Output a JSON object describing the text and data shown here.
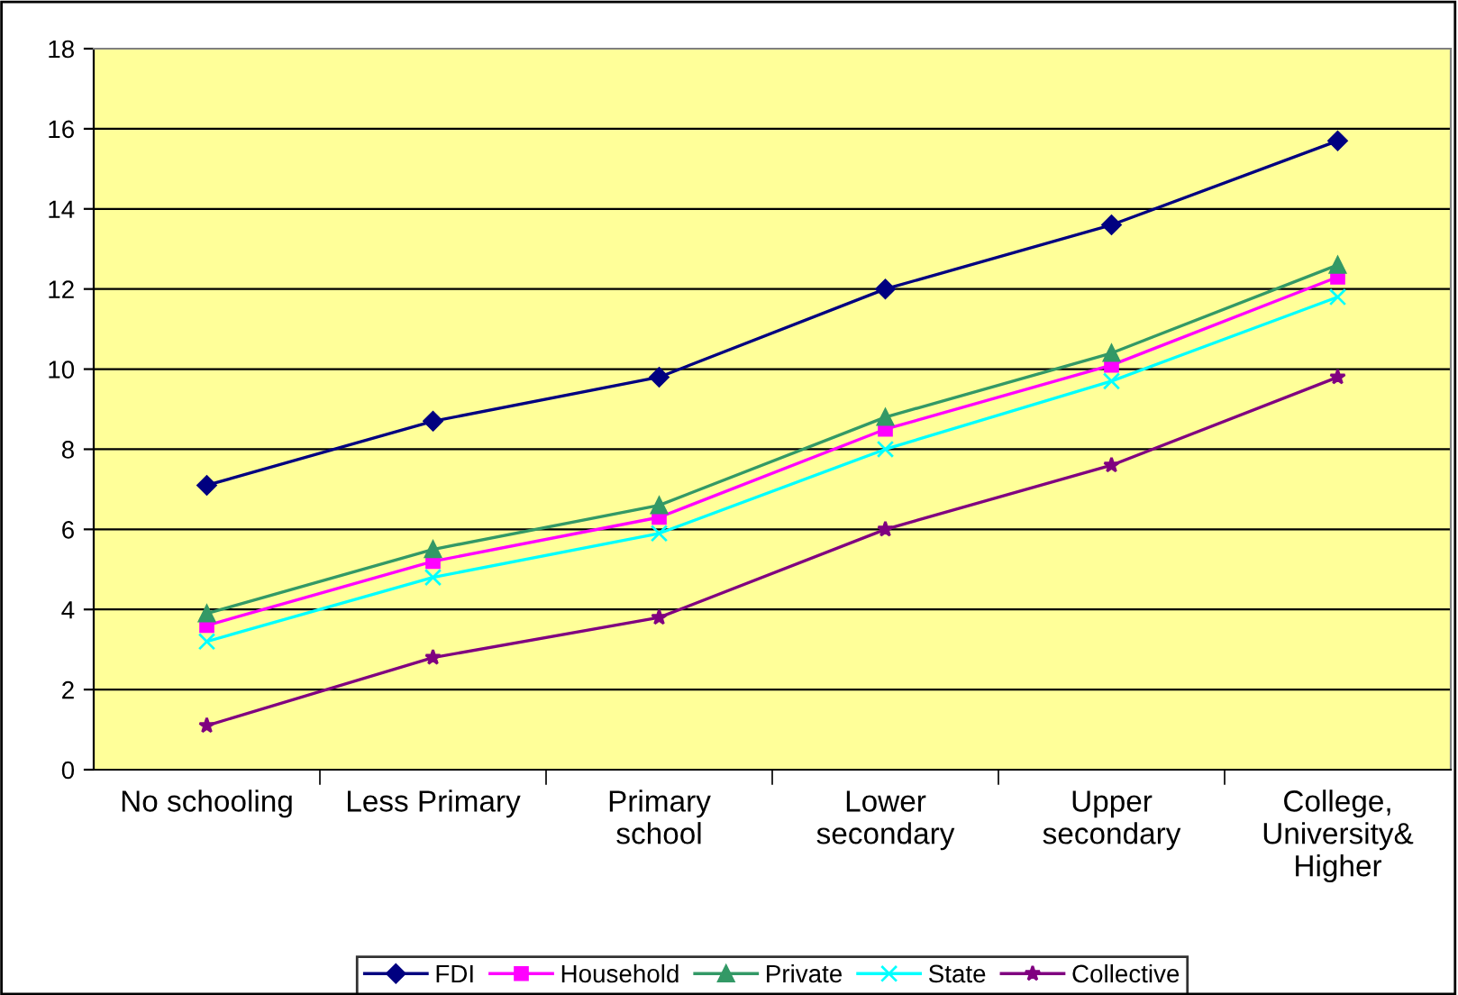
{
  "chart_data": {
    "type": "line",
    "categories": [
      "No schooling",
      "Less Primary",
      "Primary\nschool",
      "Lower\nsecondary",
      "Upper\nsecondary",
      "College,\nUniversity&\nHigher"
    ],
    "series": [
      {
        "name": "FDI",
        "color": "#000080",
        "marker": "diamond",
        "values": [
          7.1,
          8.7,
          9.8,
          12.0,
          13.6,
          15.7
        ]
      },
      {
        "name": "Household",
        "color": "#ff00ff",
        "marker": "square",
        "values": [
          3.6,
          5.2,
          6.3,
          8.5,
          10.1,
          12.3
        ]
      },
      {
        "name": "Private",
        "color": "#339966",
        "marker": "triangle",
        "values": [
          3.9,
          5.5,
          6.6,
          8.8,
          10.4,
          12.6
        ]
      },
      {
        "name": "State",
        "color": "#00ffff",
        "marker": "cross",
        "values": [
          3.2,
          4.8,
          5.9,
          8.0,
          9.7,
          11.8
        ]
      },
      {
        "name": "Collective",
        "color": "#800080",
        "marker": "star",
        "values": [
          1.1,
          2.8,
          3.8,
          6.0,
          7.6,
          9.8
        ]
      }
    ],
    "ylim": [
      0,
      18
    ],
    "yticks": [
      0,
      2,
      4,
      6,
      8,
      10,
      12,
      14,
      16,
      18
    ],
    "grid": "y",
    "legend": "bottom",
    "line_style": "solid"
  }
}
